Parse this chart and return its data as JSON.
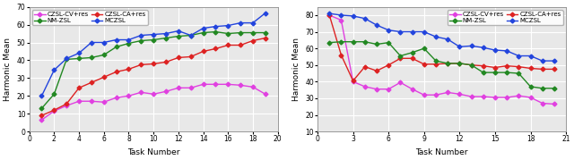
{
  "left": {
    "x": [
      1,
      2,
      3,
      4,
      5,
      6,
      7,
      8,
      9,
      10,
      11,
      12,
      13,
      14,
      15,
      16,
      17,
      18,
      19
    ],
    "czsl_cv": [
      6.5,
      11.5,
      14.5,
      17.0,
      17.0,
      16.5,
      19.0,
      20.0,
      22.0,
      21.0,
      22.5,
      24.5,
      24.5,
      26.5,
      26.5,
      26.5,
      26.0,
      25.0,
      21.0
    ],
    "czsl_ca": [
      9.0,
      12.0,
      15.5,
      24.5,
      27.5,
      30.5,
      33.5,
      35.0,
      37.5,
      38.0,
      39.0,
      41.5,
      42.0,
      45.0,
      46.5,
      48.5,
      48.5,
      51.0,
      52.5
    ],
    "nm_zsl": [
      13.0,
      21.0,
      40.5,
      41.0,
      41.5,
      43.0,
      47.5,
      49.5,
      51.0,
      51.5,
      52.5,
      53.5,
      54.0,
      55.5,
      56.0,
      55.0,
      55.5,
      55.5,
      55.5
    ],
    "mczsl": [
      20.0,
      34.5,
      41.0,
      44.0,
      50.0,
      50.0,
      51.5,
      51.5,
      54.0,
      54.5,
      55.0,
      56.5,
      54.0,
      58.0,
      59.0,
      59.5,
      61.0,
      61.0,
      66.5
    ],
    "ylim": [
      0,
      70
    ],
    "yticks": [
      0,
      10,
      20,
      30,
      40,
      50,
      60,
      70
    ],
    "xlim": [
      0,
      20
    ],
    "xticks": [
      0,
      2,
      4,
      6,
      8,
      10,
      12,
      14,
      16,
      18,
      20
    ],
    "xlabel": "Task Number",
    "ylabel": "Harmonic Mean",
    "legend_loc": "upper left",
    "legend_bbox": null
  },
  "right": {
    "x": [
      1,
      2,
      3,
      4,
      5,
      6,
      7,
      8,
      9,
      10,
      11,
      12,
      13,
      14,
      15,
      16,
      17,
      18,
      19,
      20
    ],
    "czsl_cv": [
      80.0,
      77.0,
      40.0,
      37.0,
      35.5,
      35.5,
      39.5,
      35.5,
      32.0,
      32.0,
      33.5,
      32.5,
      31.0,
      31.0,
      30.5,
      30.5,
      31.5,
      30.5,
      27.0,
      26.5
    ],
    "czsl_ca": [
      80.0,
      56.0,
      40.5,
      49.0,
      46.5,
      50.0,
      54.0,
      54.0,
      50.5,
      50.5,
      51.0,
      51.0,
      50.0,
      49.5,
      48.5,
      49.5,
      49.0,
      48.0,
      47.5,
      47.5
    ],
    "nm_zsl": [
      63.5,
      64.0,
      64.0,
      64.0,
      62.5,
      63.5,
      55.5,
      57.5,
      60.0,
      52.5,
      51.0,
      51.0,
      50.0,
      45.5,
      45.5,
      45.5,
      45.0,
      37.0,
      36.0,
      36.0
    ],
    "mczsl": [
      81.0,
      80.0,
      79.5,
      78.0,
      74.0,
      71.0,
      70.0,
      70.0,
      70.0,
      67.0,
      65.5,
      61.0,
      61.5,
      60.5,
      59.0,
      58.5,
      55.5,
      55.5,
      52.5,
      52.5
    ],
    "ylim": [
      10,
      85
    ],
    "yticks": [
      10,
      20,
      30,
      40,
      50,
      60,
      70,
      80
    ],
    "xlim": [
      0,
      21
    ],
    "xticks": [
      0,
      3,
      6,
      9,
      12,
      15,
      18,
      21
    ],
    "xlabel": "Task Number",
    "ylabel": "Harmonic Mean",
    "legend_loc": "upper right",
    "legend_bbox": null
  },
  "colors": {
    "czsl_cv": "#e040e0",
    "czsl_ca": "#dd2222",
    "nm_zsl": "#228822",
    "mczsl": "#2244dd"
  },
  "legend": {
    "czsl_cv": "CZSL-CV+res",
    "czsl_ca": "CZSL-CA+res",
    "nm_zsl": "NM-ZSL",
    "mczsl": "MCZSL"
  },
  "marker": "D",
  "markersize": 2.5,
  "linewidth": 1.0,
  "bg_color": "#e8e8e8",
  "grid_color": "#ffffff",
  "grid_lw": 0.8
}
